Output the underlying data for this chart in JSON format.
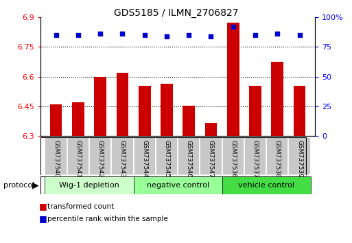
{
  "title": "GDS5185 / ILMN_2706827",
  "samples": [
    "GSM737540",
    "GSM737541",
    "GSM737542",
    "GSM737543",
    "GSM737544",
    "GSM737545",
    "GSM737546",
    "GSM737547",
    "GSM737536",
    "GSM737537",
    "GSM737538",
    "GSM737539"
  ],
  "bar_values": [
    6.46,
    6.47,
    6.6,
    6.62,
    6.555,
    6.565,
    6.452,
    6.365,
    6.87,
    6.555,
    6.675,
    6.555
  ],
  "percentile_values": [
    85,
    85,
    86,
    86,
    85,
    84,
    85,
    84,
    92,
    85,
    86,
    85
  ],
  "ylim_left": [
    6.3,
    6.9
  ],
  "ylim_right": [
    0,
    100
  ],
  "yticks_left": [
    6.3,
    6.45,
    6.6,
    6.75,
    6.9
  ],
  "ytick_labels_left": [
    "6.3",
    "6.45",
    "6.6",
    "6.75",
    "6.9"
  ],
  "yticks_right": [
    0,
    25,
    50,
    75,
    100
  ],
  "ytick_labels_right": [
    "0",
    "25",
    "50",
    "75",
    "100%"
  ],
  "bar_color": "#cc0000",
  "dot_color": "#0000cc",
  "group_labels": [
    "Wig-1 depletion",
    "negative control",
    "vehicle control"
  ],
  "group_ranges": [
    [
      0,
      4
    ],
    [
      4,
      8
    ],
    [
      8,
      12
    ]
  ],
  "group_colors": [
    "#ccffcc",
    "#aaffaa",
    "#66ee66"
  ],
  "protocol_label": "protocol",
  "legend_bar_label": "transformed count",
  "legend_dot_label": "percentile rank within the sample",
  "sample_box_color": "#c8c8c8",
  "grid_color": "#000000"
}
